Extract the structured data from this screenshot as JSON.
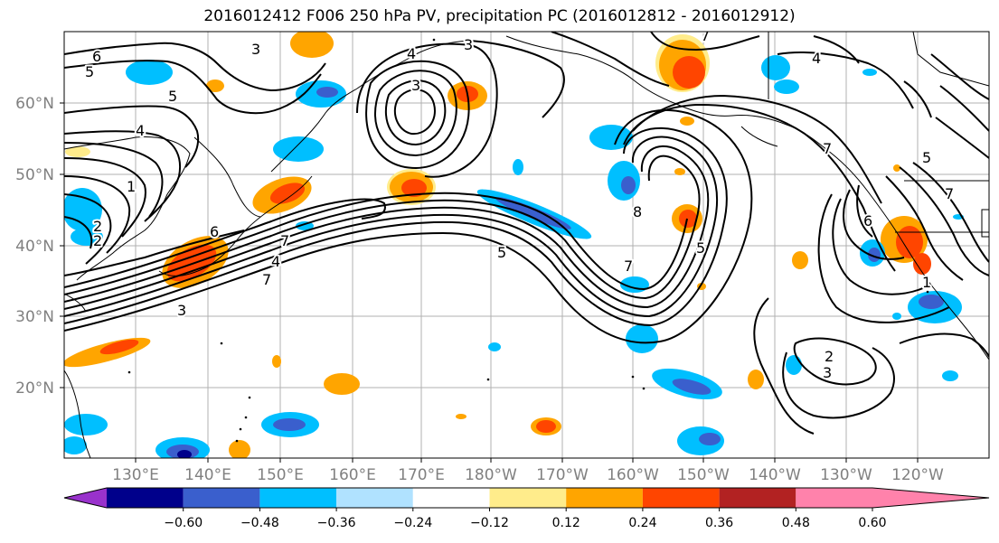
{
  "title": "2016012412 F006 250 hPa PV, precipitation PC (2016012812 - 2016012912)",
  "lat_labels": [
    "60°N",
    "50°N",
    "40°N",
    "30°N",
    "20°N"
  ],
  "lon_labels": [
    "130°E",
    "140°E",
    "150°E",
    "160°E",
    "170°E",
    "180°W",
    "170°W",
    "160°W",
    "150°W",
    "140°W",
    "130°W",
    "120°W"
  ],
  "contour_labels": [
    "6",
    "5",
    "5",
    "4",
    "3",
    "2",
    "1",
    "2",
    "3",
    "3",
    "7",
    "6",
    "5",
    "4",
    "3",
    "4",
    "7",
    "7",
    "5",
    "8",
    "7",
    "7",
    "2",
    "3",
    "1",
    "7",
    "6",
    "4",
    "5"
  ],
  "colorbar": {
    "tick_labels": [
      "−0.60",
      "−0.48",
      "−0.36",
      "−0.24",
      "−0.12",
      "0.12",
      "0.24",
      "0.36",
      "0.48",
      "0.60"
    ],
    "colors": [
      "#9932CC",
      "#00008B",
      "#3A5FCD",
      "#00BFFF",
      "#B0E2FF",
      "#FFFFFF",
      "#FFEC8B",
      "#FFA500",
      "#FF4500",
      "#B22222",
      "#FF82AB"
    ]
  }
}
